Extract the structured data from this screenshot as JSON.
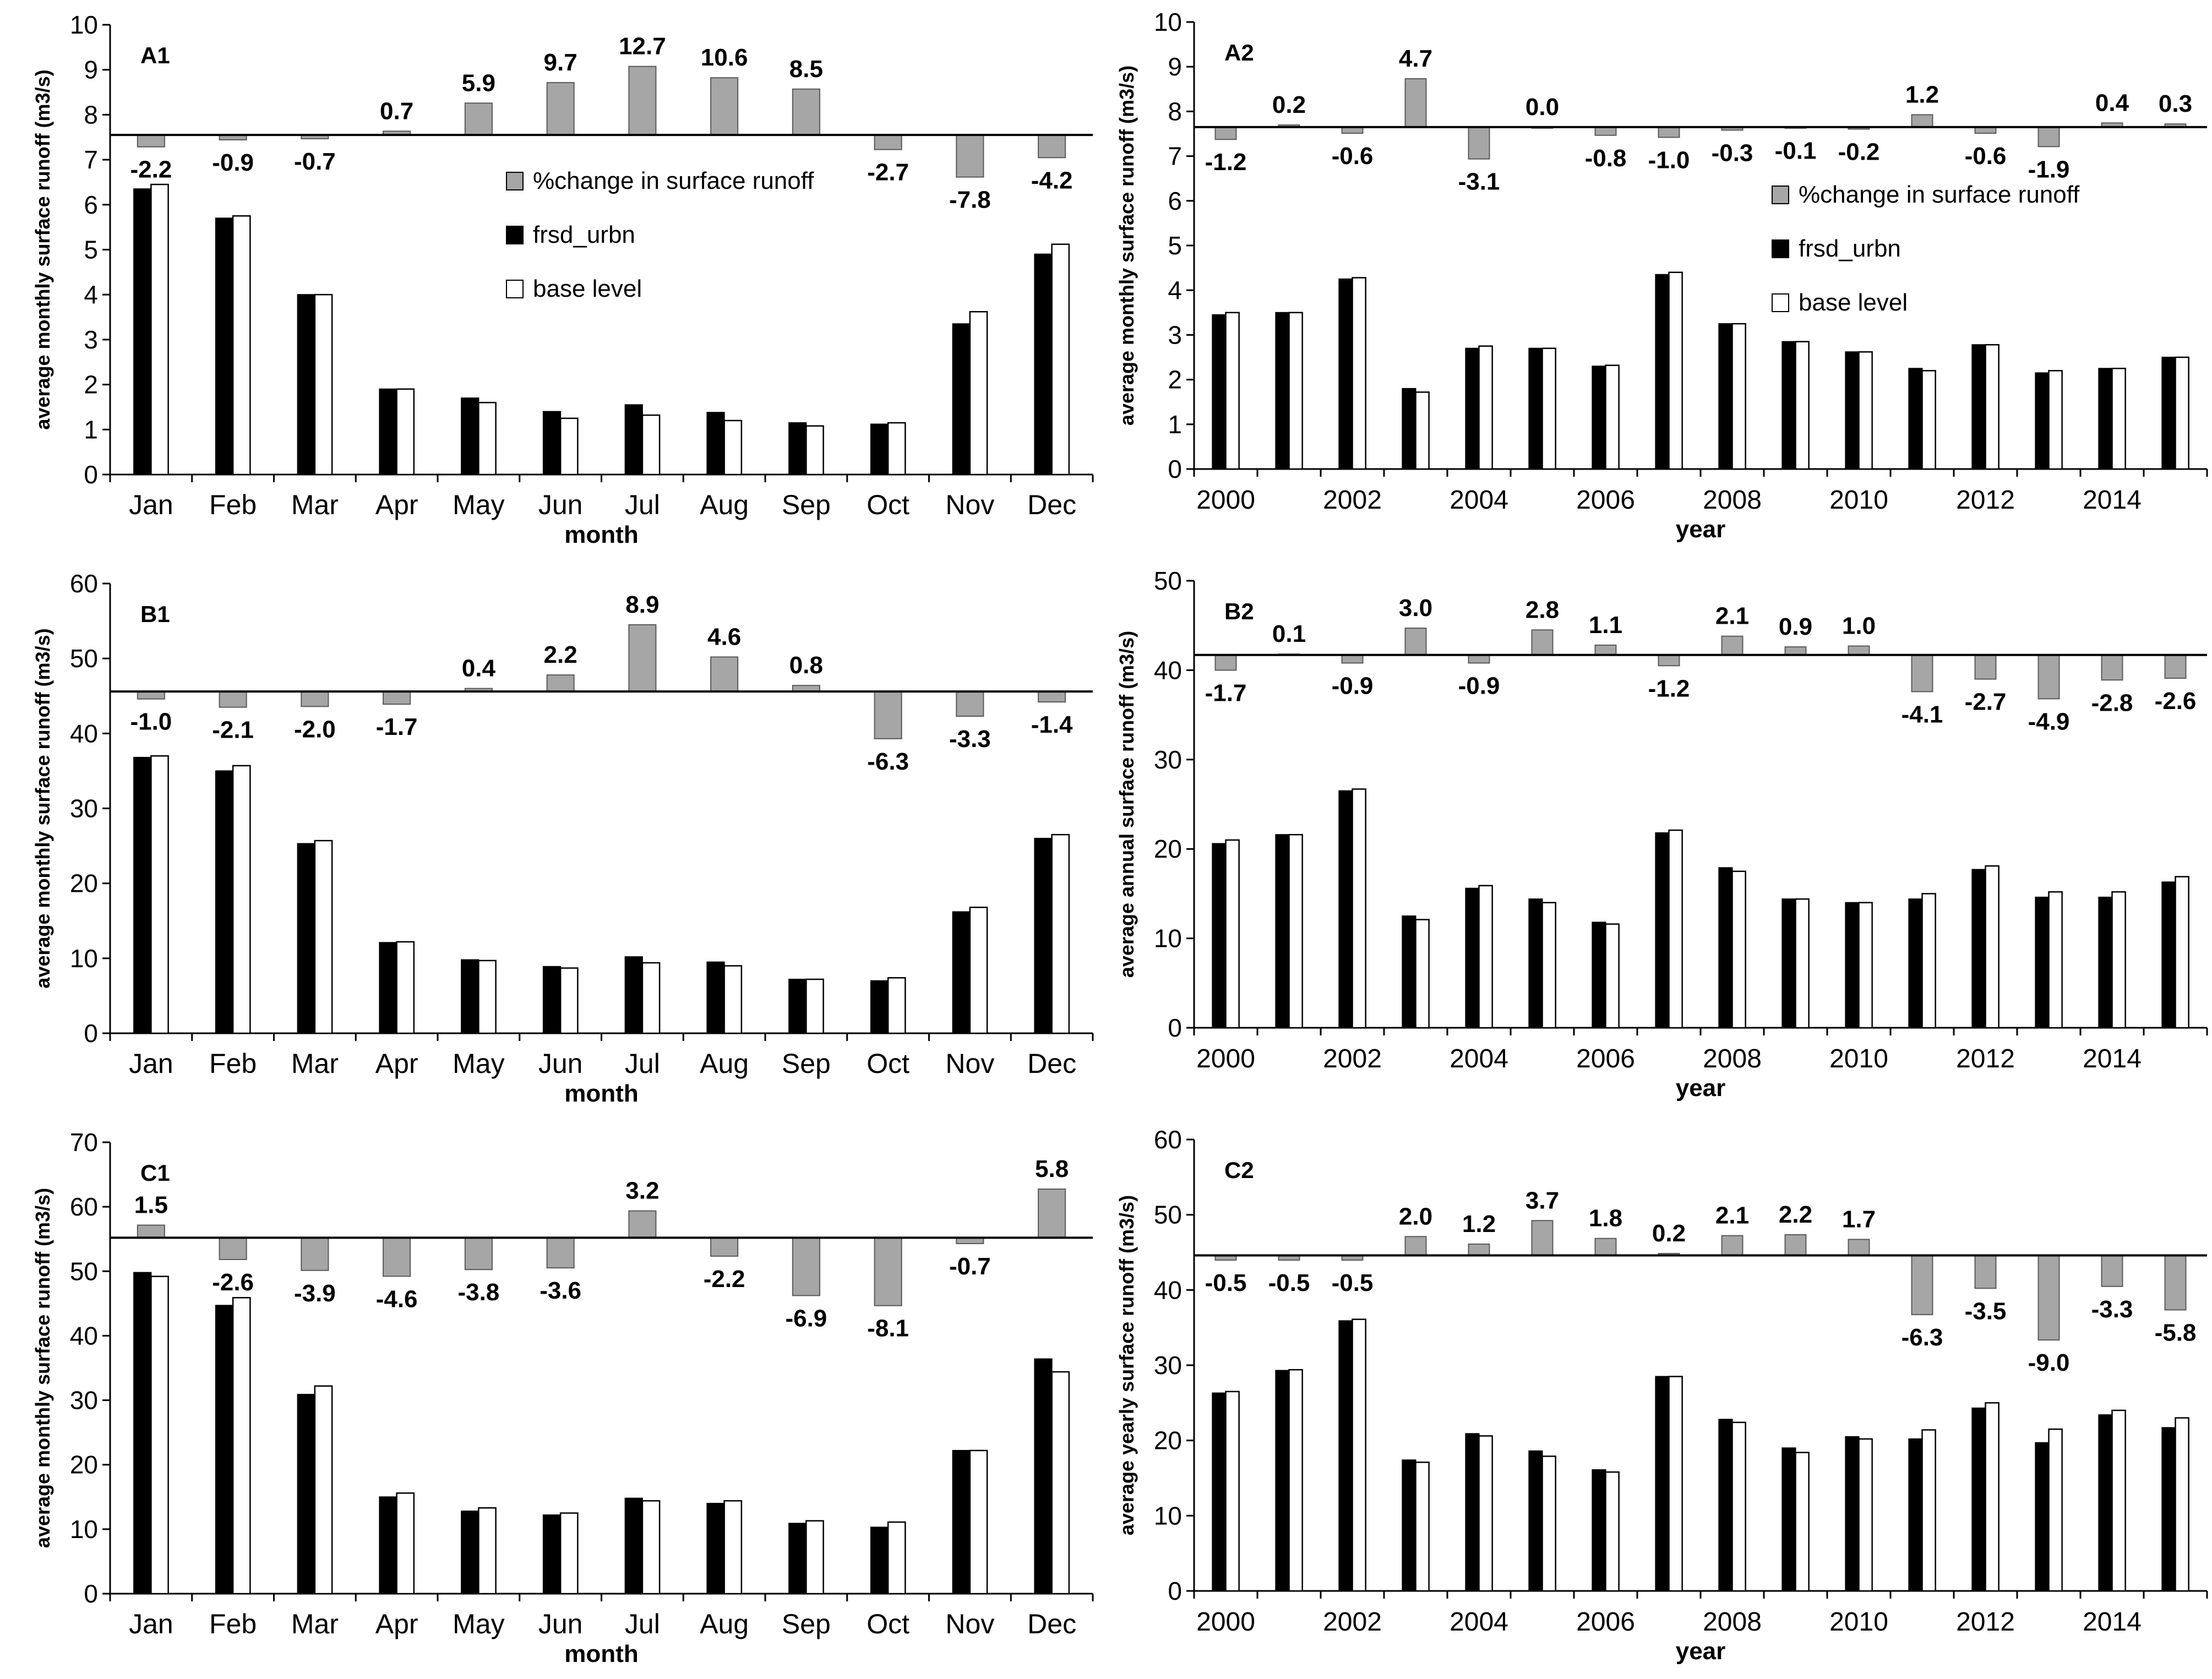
{
  "legend": {
    "pct_label": "%change in surface runoff",
    "frsd_label": "frsd_urbn",
    "base_label": "base level"
  },
  "chart_data": [
    {
      "id": "A1",
      "type": "bar",
      "xtype": "category",
      "categories": [
        "Jan",
        "Feb",
        "Mar",
        "Apr",
        "May",
        "Jun",
        "Jul",
        "Aug",
        "Sep",
        "Oct",
        "Nov",
        "Dec"
      ],
      "xlabel": "month",
      "ylabel": "average monthly surface runoff (m3/s)",
      "ylim": [
        0,
        10
      ],
      "yticks": [
        0,
        1,
        2,
        3,
        4,
        5,
        6,
        7,
        8,
        9,
        10
      ],
      "series": [
        {
          "name": "frsd_urbn",
          "values": [
            6.35,
            5.7,
            4.0,
            1.9,
            1.7,
            1.4,
            1.55,
            1.38,
            1.15,
            1.12,
            3.35,
            4.9
          ]
        },
        {
          "name": "base level",
          "values": [
            6.45,
            5.75,
            4.0,
            1.9,
            1.6,
            1.25,
            1.32,
            1.2,
            1.08,
            1.15,
            3.62,
            5.12
          ]
        }
      ],
      "pct_change": {
        "name": "%change in surface runoff",
        "baseline": 7.55,
        "unit_scale": 0.12,
        "values": [
          -2.2,
          -0.9,
          -0.7,
          0.7,
          5.9,
          9.7,
          12.7,
          10.6,
          8.5,
          -2.7,
          -7.8,
          -4.2
        ],
        "labels": [
          "-2.2",
          "-0.9",
          "-0.7",
          "0.7",
          "5.9",
          "9.7",
          "12.7",
          "10.6",
          "8.5",
          "-2.7",
          "-7.8",
          "-4.2"
        ]
      },
      "legend_position": "center"
    },
    {
      "id": "A2",
      "type": "bar",
      "xtype": "year",
      "categories": [
        "2000",
        "2001",
        "2002",
        "2003",
        "2004",
        "2005",
        "2006",
        "2007",
        "2008",
        "2009",
        "2010",
        "2011",
        "2012",
        "2013",
        "2014",
        "2015"
      ],
      "xticks": [
        "2000",
        "2002",
        "2004",
        "2006",
        "2008",
        "2010",
        "2012",
        "2014"
      ],
      "xlabel": "year",
      "ylabel": "average monthly surface runoff (m3/s)",
      "ylim": [
        0,
        10
      ],
      "yticks": [
        0,
        1,
        2,
        3,
        4,
        5,
        6,
        7,
        8,
        9,
        10
      ],
      "series": [
        {
          "name": "frsd_urbn",
          "values": [
            3.45,
            3.5,
            4.25,
            1.8,
            2.7,
            2.7,
            2.3,
            4.35,
            3.25,
            2.85,
            2.62,
            2.25,
            2.78,
            2.15,
            2.25,
            2.5
          ]
        },
        {
          "name": "base level",
          "values": [
            3.5,
            3.5,
            4.28,
            1.72,
            2.75,
            2.7,
            2.32,
            4.4,
            3.25,
            2.85,
            2.62,
            2.2,
            2.78,
            2.2,
            2.25,
            2.5
          ]
        }
      ],
      "pct_change": {
        "name": "%change in surface runoff",
        "baseline": 7.65,
        "unit_scale": 0.23,
        "values": [
          -1.2,
          0.2,
          -0.6,
          4.7,
          -3.1,
          0.0,
          -0.8,
          -1.0,
          -0.3,
          -0.1,
          -0.2,
          1.2,
          -0.6,
          -1.9,
          0.4,
          0.3
        ],
        "labels": [
          "-1.2",
          "0.2",
          "-0.6",
          "4.7",
          "-3.1",
          "0.0",
          "-0.8",
          "-1.0",
          "-0.3",
          "-0.1",
          "-0.2",
          "1.2",
          "-0.6",
          "-1.9",
          "0.4",
          "0.3"
        ]
      },
      "legend_position": "right"
    },
    {
      "id": "B1",
      "type": "bar",
      "xtype": "category",
      "categories": [
        "Jan",
        "Feb",
        "Mar",
        "Apr",
        "May",
        "Jun",
        "Jul",
        "Aug",
        "Sep",
        "Oct",
        "Nov",
        "Dec"
      ],
      "xlabel": "month",
      "ylabel": "average monthly surface runoff (m3/s)",
      "ylim": [
        0,
        60
      ],
      "yticks": [
        0,
        10,
        20,
        30,
        40,
        50,
        60
      ],
      "series": [
        {
          "name": "frsd_urbn",
          "values": [
            36.8,
            35.0,
            25.3,
            12.1,
            9.8,
            8.9,
            10.2,
            9.5,
            7.2,
            7.0,
            16.2,
            26.0
          ]
        },
        {
          "name": "base level",
          "values": [
            37.0,
            35.7,
            25.7,
            12.2,
            9.7,
            8.7,
            9.4,
            9.0,
            7.2,
            7.4,
            16.8,
            26.5
          ]
        }
      ],
      "pct_change": {
        "name": "%change in surface runoff",
        "baseline": 45.6,
        "unit_scale": 1.0,
        "values": [
          -1.0,
          -2.1,
          -2.0,
          -1.7,
          0.4,
          2.2,
          8.9,
          4.6,
          0.8,
          -6.3,
          -3.3,
          -1.4
        ],
        "labels": [
          "-1.0",
          "-2.1",
          "-2.0",
          "-1.7",
          "0.4",
          "2.2",
          "8.9",
          "4.6",
          "0.8",
          "-6.3",
          "-3.3",
          "-1.4"
        ]
      }
    },
    {
      "id": "B2",
      "type": "bar",
      "xtype": "year",
      "categories": [
        "2000",
        "2001",
        "2002",
        "2003",
        "2004",
        "2005",
        "2006",
        "2007",
        "2008",
        "2009",
        "2010",
        "2011",
        "2012",
        "2013",
        "2014",
        "2015"
      ],
      "xticks": [
        "2000",
        "2002",
        "2004",
        "2006",
        "2008",
        "2010",
        "2012",
        "2014"
      ],
      "xlabel": "year",
      "ylabel": "average annual  surface runoff (m3/s)",
      "ylim": [
        0,
        50
      ],
      "yticks": [
        0,
        10,
        20,
        30,
        40,
        50
      ],
      "series": [
        {
          "name": "frsd_urbn",
          "values": [
            20.6,
            21.6,
            26.5,
            12.5,
            15.6,
            14.4,
            11.8,
            21.8,
            17.9,
            14.4,
            14.0,
            14.4,
            17.7,
            14.6,
            14.6,
            16.3
          ]
        },
        {
          "name": "base level",
          "values": [
            21.0,
            21.6,
            26.7,
            12.1,
            15.9,
            14.0,
            11.6,
            22.1,
            17.5,
            14.4,
            14.0,
            15.0,
            18.1,
            15.2,
            15.2,
            16.9
          ]
        }
      ],
      "pct_change": {
        "name": "%change in surface runoff",
        "baseline": 41.7,
        "unit_scale": 1.0,
        "values": [
          -1.7,
          0.1,
          -0.9,
          3.0,
          -0.9,
          2.8,
          1.1,
          -1.2,
          2.1,
          0.9,
          1.0,
          -4.1,
          -2.7,
          -4.9,
          -2.8,
          -2.6
        ],
        "labels": [
          "-1.7",
          "0.1",
          "-0.9",
          "3.0",
          "-0.9",
          "2.8",
          "1.1",
          "-1.2",
          "2.1",
          "0.9",
          "1.0",
          "-4.1",
          "-2.7",
          "-4.9",
          "-2.8",
          "-2.6"
        ]
      }
    },
    {
      "id": "C1",
      "type": "bar",
      "xtype": "category",
      "categories": [
        "Jan",
        "Feb",
        "Mar",
        "Apr",
        "May",
        "Jun",
        "Jul",
        "Aug",
        "Sep",
        "Oct",
        "Nov",
        "Dec"
      ],
      "xlabel": "month",
      "ylabel": "average monthly surface runoff (m3/s)",
      "ylim": [
        0,
        70
      ],
      "yticks": [
        0,
        10,
        20,
        30,
        40,
        50,
        60,
        70
      ],
      "series": [
        {
          "name": "frsd_urbn",
          "values": [
            49.8,
            44.7,
            30.9,
            15.0,
            12.8,
            12.2,
            14.8,
            14.0,
            10.9,
            10.3,
            22.2,
            36.4
          ]
        },
        {
          "name": "base level",
          "values": [
            49.2,
            45.9,
            32.2,
            15.6,
            13.3,
            12.5,
            14.4,
            14.4,
            11.3,
            11.1,
            22.2,
            34.4
          ]
        }
      ],
      "pct_change": {
        "name": "%change in surface runoff",
        "baseline": 55.2,
        "unit_scale": 1.3,
        "values": [
          1.5,
          -2.6,
          -3.9,
          -4.6,
          -3.8,
          -3.6,
          3.2,
          -2.2,
          -6.9,
          -8.1,
          -0.7,
          5.8
        ],
        "labels": [
          "1.5",
          "-2.6",
          "-3.9",
          "-4.6",
          "-3.8",
          "-3.6",
          "3.2",
          "-2.2",
          "-6.9",
          "-8.1",
          "-0.7",
          "5.8"
        ]
      }
    },
    {
      "id": "C2",
      "type": "bar",
      "xtype": "year",
      "categories": [
        "2000",
        "2001",
        "2002",
        "2003",
        "2004",
        "2005",
        "2006",
        "2007",
        "2008",
        "2009",
        "2010",
        "2011",
        "2012",
        "2013",
        "2014",
        "2015"
      ],
      "xticks": [
        "2000",
        "2002",
        "2004",
        "2006",
        "2008",
        "2010",
        "2012",
        "2014"
      ],
      "xlabel": "year",
      "ylabel": "average yearly surface runoff (m3/s)",
      "ylim": [
        0,
        60
      ],
      "yticks": [
        0,
        10,
        20,
        30,
        40,
        50,
        60
      ],
      "series": [
        {
          "name": "frsd_urbn",
          "values": [
            26.3,
            29.3,
            35.9,
            17.4,
            20.9,
            18.6,
            16.1,
            28.5,
            22.8,
            19.0,
            20.5,
            20.2,
            24.3,
            19.7,
            23.4,
            21.7
          ]
        },
        {
          "name": "base level",
          "values": [
            26.5,
            29.4,
            36.1,
            17.1,
            20.6,
            17.9,
            15.8,
            28.5,
            22.4,
            18.4,
            20.2,
            21.4,
            25.0,
            21.5,
            24.0,
            23.0
          ]
        }
      ],
      "pct_change": {
        "name": "%change in surface runoff",
        "baseline": 44.6,
        "unit_scale": 1.25,
        "values": [
          -0.5,
          -0.5,
          -0.5,
          2.0,
          1.2,
          3.7,
          1.8,
          0.2,
          2.1,
          2.2,
          1.7,
          -6.3,
          -3.5,
          -9.0,
          -3.3,
          -5.8
        ],
        "labels": [
          "-0.5",
          "-0.5",
          "-0.5",
          "2.0",
          "1.2",
          "3.7",
          "1.8",
          "0.2",
          "2.1",
          "2.2",
          "1.7",
          "-6.3",
          "-3.5",
          "-9.0",
          "-3.3",
          "-5.8"
        ]
      }
    }
  ]
}
